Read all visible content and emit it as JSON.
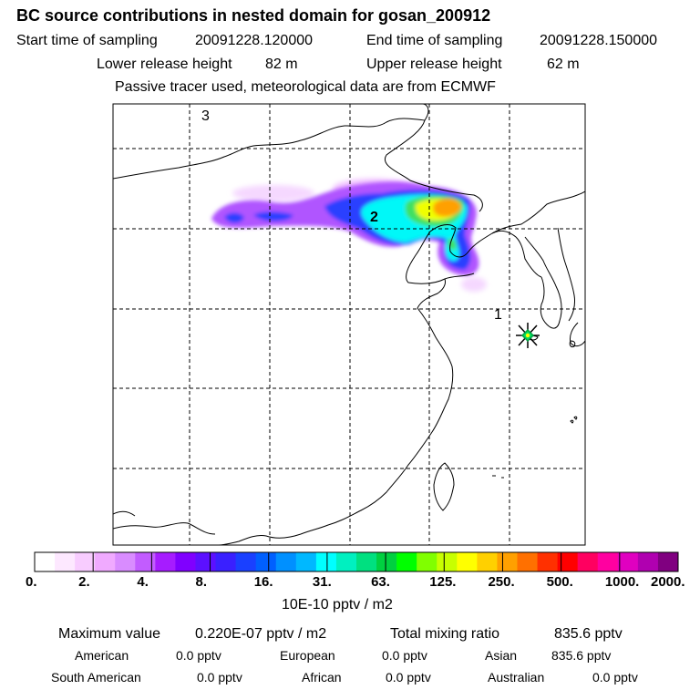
{
  "header": {
    "title": "BC  source contributions in nested domain for gosan_200912",
    "start_label": "Start time of sampling",
    "start_value": "20091228.120000",
    "end_label": "End time of sampling",
    "end_value": "20091228.150000",
    "lower_label": "Lower release height",
    "lower_value": "82 m",
    "upper_label": "Upper release height",
    "upper_value": "62 m",
    "tracer_note": "Passive tracer used, meteorological data are from ECMWF"
  },
  "map": {
    "labels": [
      "3",
      "2",
      "1"
    ],
    "receptor_marker": "receptor-star"
  },
  "colorbar": {
    "ticks": [
      "0.",
      "2.",
      "4.",
      "8.",
      "16.",
      "31.",
      "63.",
      "125.",
      "250.",
      "500.",
      "1000.",
      "2000."
    ],
    "units": "10E-10 pptv / m2",
    "colors": [
      "#ffffff",
      "#fde8ff",
      "#f8ccff",
      "#f0aaff",
      "#d98cff",
      "#c25cff",
      "#a61cff",
      "#8000ff",
      "#5c10ff",
      "#3a20ff",
      "#1a40ff",
      "#0060ff",
      "#0090ff",
      "#00b8ff",
      "#00ffff",
      "#00f0c0",
      "#00e080",
      "#00d040",
      "#00ff00",
      "#80ff00",
      "#c8ff00",
      "#ffff00",
      "#ffd000",
      "#ffa000",
      "#ff7000",
      "#ff3000",
      "#ff0000",
      "#ff0060",
      "#ff00a0",
      "#e000c0",
      "#b000b0",
      "#800080"
    ]
  },
  "summary": {
    "max_label": "Maximum value",
    "max_value": "0.220E-07 pptv / m2",
    "total_label": "Total mixing ratio",
    "total_value": "835.6 pptv",
    "regions": [
      {
        "name": "American",
        "value": "0.0 pptv"
      },
      {
        "name": "European",
        "value": "0.0 pptv"
      },
      {
        "name": "Asian",
        "value": "835.6 pptv"
      },
      {
        "name": "South American",
        "value": "0.0 pptv"
      },
      {
        "name": "African",
        "value": "0.0 pptv"
      },
      {
        "name": "Australian",
        "value": "0.0 pptv"
      }
    ]
  }
}
